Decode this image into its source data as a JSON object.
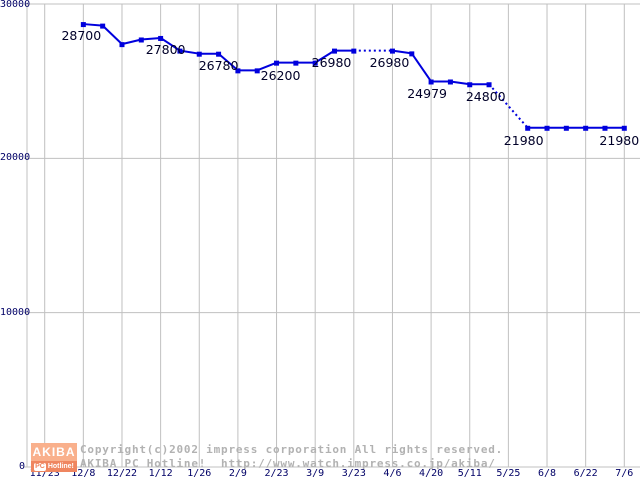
{
  "page": {
    "background": "#ffffff"
  },
  "chart_data": {
    "type": "line",
    "title": "",
    "xlabel": "",
    "ylabel": "",
    "grid": true,
    "legend": "none",
    "line_color": "#0000dd",
    "grid_color": "#c0c0c0",
    "axis_label_color": "#000066",
    "point_label_color": "#000028",
    "y_axis": {
      "min": 0,
      "max": 30000,
      "ticks": [
        {
          "value": 30000,
          "label": "30000"
        },
        {
          "value": 20000,
          "label": "20000"
        },
        {
          "value": 10000,
          "label": "10000"
        },
        {
          "value": 0,
          "label": "0"
        }
      ]
    },
    "x_axis": {
      "labels": [
        "11/23",
        "12/8",
        "12/22",
        "1/12",
        "1/26",
        "2/9",
        "2/23",
        "3/9",
        "3/23",
        "4/6",
        "4/20",
        "5/11",
        "5/25",
        "6/8",
        "6/22",
        "7/6"
      ]
    },
    "series": [
      {
        "name": "price",
        "points": [
          {
            "slot": 2,
            "value": 28700,
            "label": "28700",
            "label_dx": -2,
            "label_dy": 5
          },
          {
            "slot": 3,
            "value": 28600
          },
          {
            "slot": 4,
            "value": 27400
          },
          {
            "slot": 5,
            "value": 27700
          },
          {
            "slot": 6,
            "value": 27800,
            "label": "27800",
            "label_dx": 5,
            "label_dy": 5
          },
          {
            "slot": 7,
            "value": 26980
          },
          {
            "slot": 8,
            "value": 26780
          },
          {
            "slot": 9,
            "value": 26780,
            "label": "26780",
            "label_dx": 0,
            "label_dy": 5
          },
          {
            "slot": 10,
            "value": 25700
          },
          {
            "slot": 11,
            "value": 25700
          },
          {
            "slot": 12,
            "value": 26200,
            "label": "26200",
            "label_dx": 4,
            "label_dy": 6
          },
          {
            "slot": 13,
            "value": 26200
          },
          {
            "slot": 14,
            "value": 26200
          },
          {
            "slot": 15,
            "value": 26980,
            "label": "26980",
            "label_dx": -3,
            "label_dy": 5
          },
          {
            "slot": 16,
            "value": 26980,
            "dotted_to_next": true
          },
          {
            "slot": 18,
            "value": 26980,
            "label": "26980",
            "label_dx": -3,
            "label_dy": 5
          },
          {
            "slot": 19,
            "value": 26800
          },
          {
            "slot": 20,
            "value": 24979,
            "label": "24979",
            "label_dx": -4,
            "label_dy": 6
          },
          {
            "slot": 21,
            "value": 24979
          },
          {
            "slot": 22,
            "value": 24800,
            "label": "24800",
            "label_dx": 16,
            "label_dy": 6
          },
          {
            "slot": 23,
            "value": 24800,
            "dotted_to_next": true
          },
          {
            "slot": 25,
            "value": 21980,
            "label": "21980",
            "label_dx": -4,
            "label_dy": 6
          },
          {
            "slot": 26,
            "value": 21980
          },
          {
            "slot": 27,
            "value": 21980
          },
          {
            "slot": 28,
            "value": 21980
          },
          {
            "slot": 29,
            "value": 21980
          },
          {
            "slot": 30,
            "value": 21980,
            "label": "21980",
            "label_dx": -5,
            "label_dy": 6
          }
        ]
      }
    ]
  },
  "footer": {
    "copyright_line1": "Copyright(c)2002 impress corporation All rights reserved.",
    "copyright_line2": "AKIBA PC Hotline!  http://www.watch.impress.co.jp/akiba/",
    "copyright_color": "#b2b2b2",
    "logo": {
      "top_text": "AKIBA",
      "bottom_left": "PC",
      "bottom_right": "Hotline!",
      "bg_top": "#f9b08c",
      "bg_bottom": "#ef8660",
      "pc_text_color": "#ef8660"
    }
  }
}
